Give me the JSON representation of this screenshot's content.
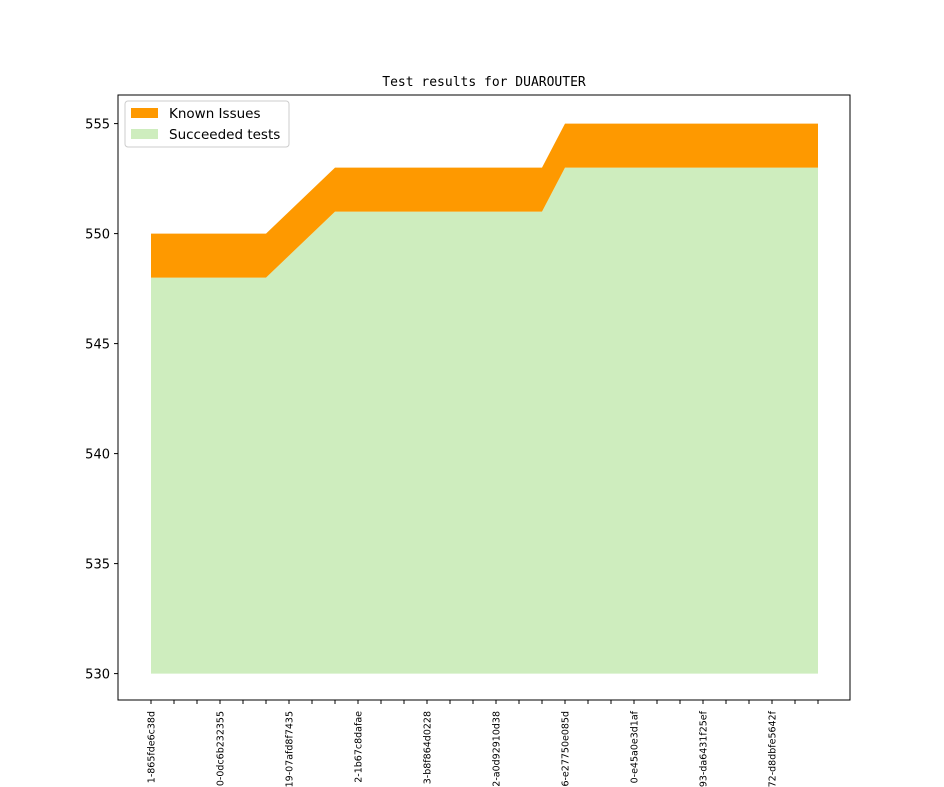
{
  "chart_data": {
    "type": "area",
    "title": "Test results for DUAROUTER",
    "xlabel": "",
    "ylabel": "",
    "ylim": [
      528.8,
      556.3
    ],
    "yticks": [
      530,
      535,
      540,
      545,
      550,
      555
    ],
    "x_count": 30,
    "x_tick_labels": [
      "1-865fde6c38d",
      "",
      "",
      "0-0dc6b232355",
      "",
      "",
      "19-07afd8f7435",
      "",
      "",
      "2-1b67c8dafae",
      "",
      "",
      "3-b8f864d0228",
      "",
      "",
      "2-a0d92910d38",
      "",
      "",
      "6-e27750e085d",
      "",
      "",
      "0-e45a0e3d1af",
      "",
      "",
      "93-da6431f25ef",
      "",
      "",
      "72-d8dbfe5642f",
      "",
      ""
    ],
    "baseline": 530,
    "series": [
      {
        "name": "Succeeded tests",
        "color": "#ceedbe",
        "values": [
          548,
          548,
          548,
          548,
          548,
          548,
          549,
          550,
          551,
          551,
          551,
          551,
          551,
          551,
          551,
          551,
          551,
          551,
          553,
          553,
          553,
          553,
          553,
          553,
          553,
          553,
          553,
          553,
          553,
          553
        ]
      },
      {
        "name": "Known Issues",
        "color": "#fe9900",
        "values": [
          2,
          2,
          2,
          2,
          2,
          2,
          2,
          2,
          2,
          2,
          2,
          2,
          2,
          2,
          2,
          2,
          2,
          2,
          2,
          2,
          2,
          2,
          2,
          2,
          2,
          2,
          2,
          2,
          2,
          2
        ]
      }
    ],
    "legend_order": [
      "Known Issues",
      "Succeeded tests"
    ],
    "legend_position": "top-left",
    "grid": false
  }
}
